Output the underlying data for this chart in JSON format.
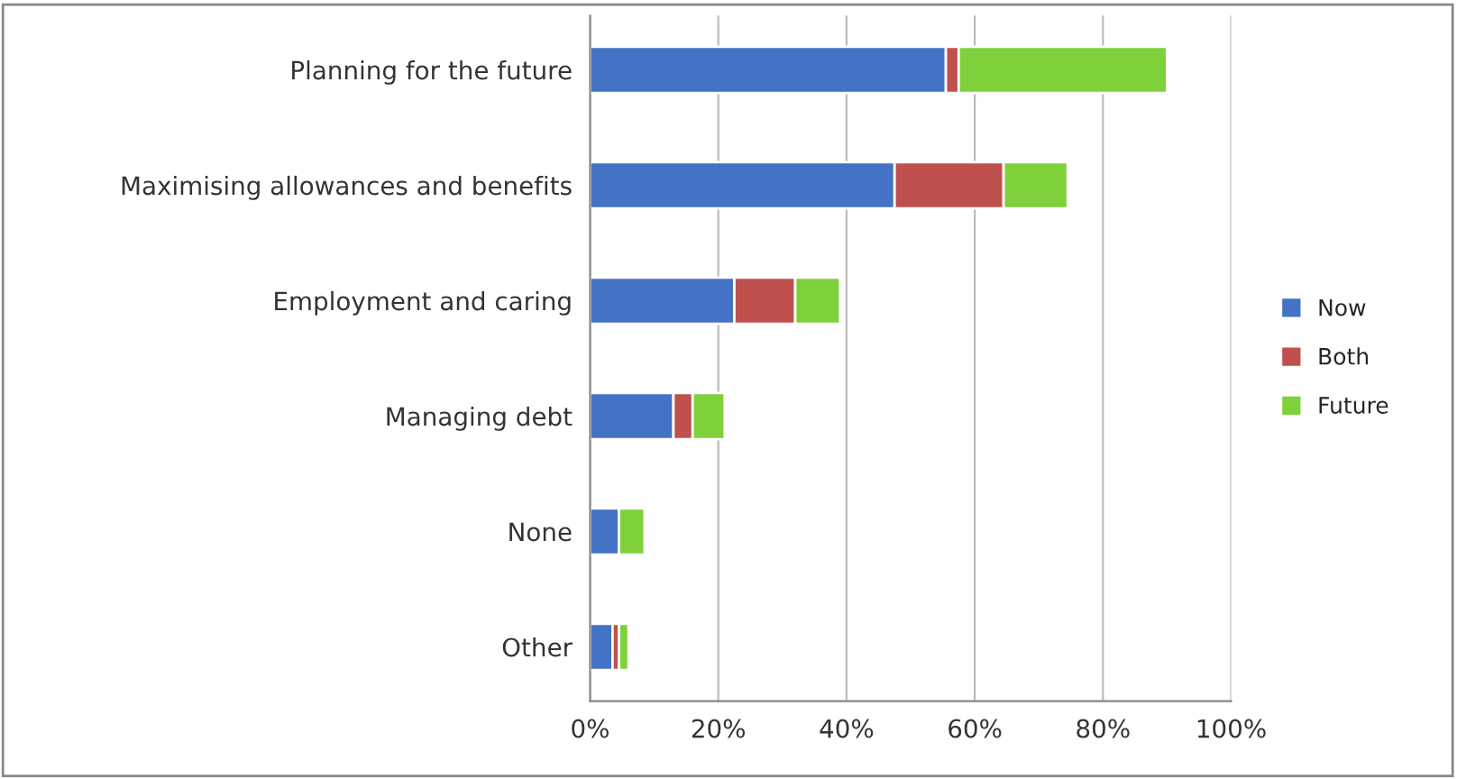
{
  "chart_data": {
    "type": "bar",
    "orientation": "horizontal",
    "stacked": true,
    "categories": [
      "Planning for the future",
      "Maximising allowances and benefits",
      "Employment and caring",
      "Managing debt",
      "None",
      "Other"
    ],
    "series": [
      {
        "name": "Now",
        "color": "#4472c4",
        "values": [
          55.5,
          47.5,
          22.5,
          13,
          4.5,
          3.5
        ]
      },
      {
        "name": "Both",
        "color": "#c0504d",
        "values": [
          2,
          17,
          9.5,
          3,
          0,
          1
        ]
      },
      {
        "name": "Future",
        "color": "#7fd13b",
        "values": [
          32.5,
          10,
          7,
          5,
          4,
          1.5
        ]
      }
    ],
    "xlim": [
      0,
      100
    ],
    "xticks": [
      {
        "value": 0,
        "label": "0%"
      },
      {
        "value": 20,
        "label": "20%"
      },
      {
        "value": 40,
        "label": "40%"
      },
      {
        "value": 60,
        "label": "60%"
      },
      {
        "value": 80,
        "label": "80%"
      },
      {
        "value": 100,
        "label": "100%"
      }
    ],
    "grid": "x",
    "legend": "right"
  }
}
